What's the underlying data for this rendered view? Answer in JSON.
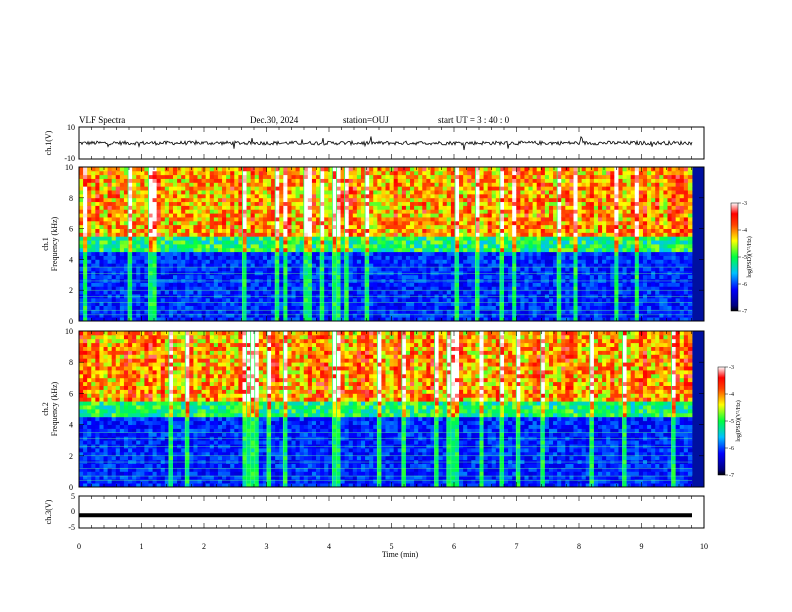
{
  "header": {
    "title": "VLF Spectra",
    "date": "Dec.30, 2024",
    "station": "station=OUJ",
    "start": "start  UT  =   3  : 40 : 0"
  },
  "chart_data": [
    {
      "type": "line",
      "panel": "ch1-waveform",
      "ylabel": "ch.1(V)",
      "ylim": [
        -10,
        10
      ],
      "yticks": [
        "10",
        "-10"
      ],
      "baseline": 0,
      "xlim": [
        0,
        10
      ]
    },
    {
      "type": "heatmap",
      "panel": "ch1-spectrogram",
      "ylabel_line1": "ch.1",
      "ylabel_line2": "Frequency  (kHz)",
      "ylim": [
        0,
        10
      ],
      "yticks": [
        "0",
        "2",
        "4",
        "6",
        "8",
        "10"
      ],
      "xlim": [
        0,
        10
      ],
      "colorbar": {
        "label": "log(PSD)(V²/Hz)",
        "range": [
          -7,
          -3
        ],
        "ticks": [
          "-3",
          "-4",
          "-5",
          "-6",
          "-7"
        ]
      }
    },
    {
      "type": "heatmap",
      "panel": "ch2-spectrogram",
      "ylabel_line1": "ch.2",
      "ylabel_line2": "Frequency  (kHz)",
      "ylim": [
        0,
        10
      ],
      "yticks": [
        "0",
        "2",
        "4",
        "6",
        "8",
        "10"
      ],
      "xlim": [
        0,
        10
      ],
      "colorbar": {
        "label": "log(PSD)(V²/Hz)",
        "range": [
          -7,
          -3
        ],
        "ticks": [
          "-3",
          "-4",
          "-5",
          "-6",
          "-7"
        ]
      }
    },
    {
      "type": "line",
      "panel": "ch3-waveform",
      "ylabel": "ch.3(V)",
      "ylim": [
        -5,
        5
      ],
      "yticks": [
        "5",
        "0",
        "-5"
      ],
      "baseline": -1,
      "xlim": [
        0,
        10
      ]
    }
  ],
  "xaxis": {
    "label": "Time  (min)",
    "ticks": [
      "0",
      "1",
      "2",
      "3",
      "4",
      "5",
      "6",
      "7",
      "8",
      "9",
      "10"
    ],
    "range": [
      0,
      10
    ]
  }
}
